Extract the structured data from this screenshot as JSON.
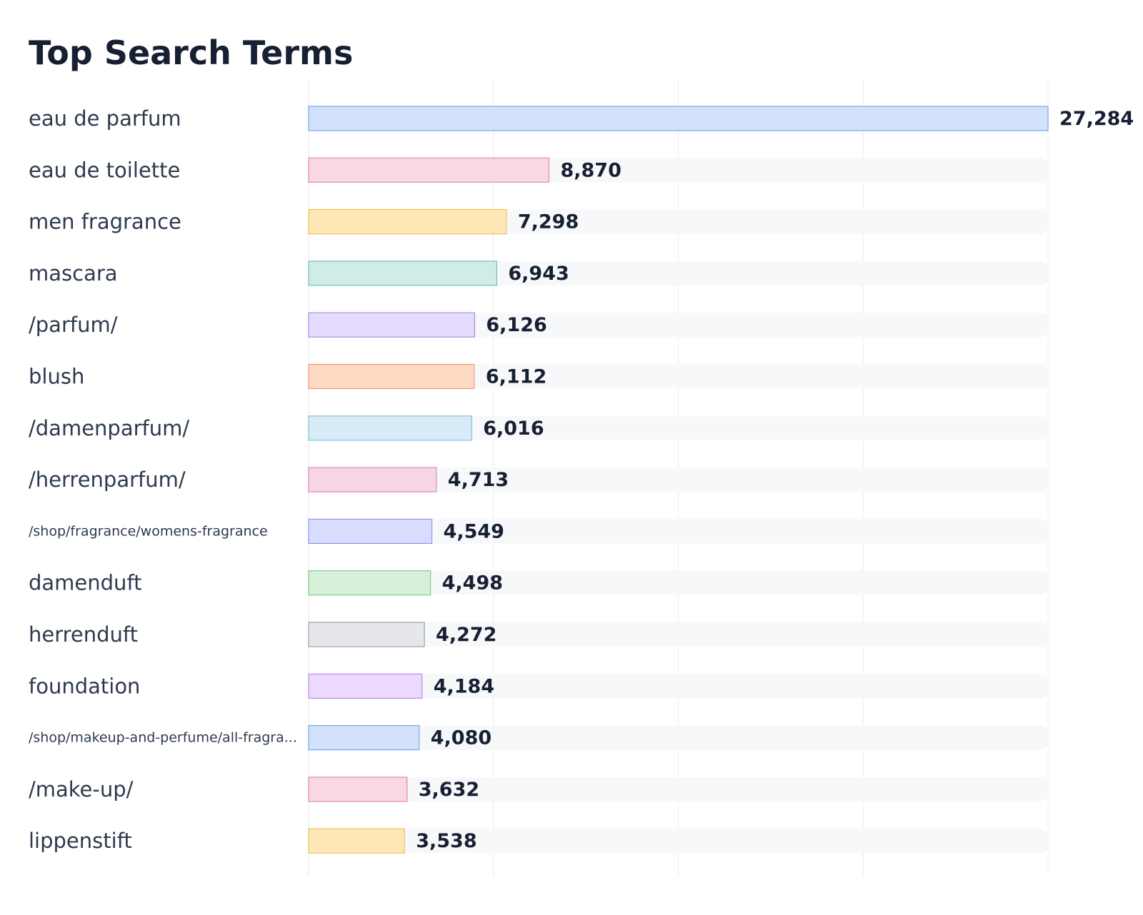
{
  "chart_data": {
    "type": "bar",
    "orientation": "horizontal",
    "title": "Top Search Terms",
    "xlabel": "",
    "ylabel": "",
    "xlim": [
      0,
      27284
    ],
    "grid": "vertical",
    "legend": "none",
    "categories": [
      "eau de parfum",
      "eau de toilette",
      "men fragrance",
      "mascara",
      "/parfum/",
      "blush",
      "/damenparfum/",
      "/herrenparfum/",
      "/shop/fragrance/womens-fragrance",
      "damenduft",
      "herrenduft",
      "foundation",
      "/shop/makeup-and-perfume/all-fragra...",
      "/make-up/",
      "lippenstift"
    ],
    "values": [
      27284,
      8870,
      7298,
      6943,
      6126,
      6112,
      6016,
      4713,
      4549,
      4498,
      4272,
      4184,
      4080,
      3632,
      3538
    ],
    "value_labels": [
      "27,284",
      "8,870",
      "7,298",
      "6,943",
      "6,126",
      "6,112",
      "6,016",
      "4,713",
      "4,549",
      "4,498",
      "4,272",
      "4,184",
      "4,080",
      "3,632",
      "3,538"
    ],
    "colors": {
      "fills": [
        "#d2e2fc",
        "#f8d8e3",
        "#fde7b5",
        "#cfede7",
        "#e5dcfd",
        "#fed9c3",
        "#d7ecf7",
        "#f6d5e6",
        "#dadcfe",
        "#d7f0da",
        "#e5e7eb",
        "#ecd9fe",
        "#d2e2fc",
        "#f8d8e3",
        "#fde7b5"
      ],
      "strokes": [
        "#7aa7e6",
        "#e58aa6",
        "#eac35a",
        "#6fc4b0",
        "#a98de8",
        "#f0a06e",
        "#82c2dd",
        "#d98ab3",
        "#8e95ee",
        "#7fcb8c",
        "#9aa1ac",
        "#c18be8",
        "#7aa7e6",
        "#e58aa6",
        "#eac35a"
      ],
      "track": "#f7f8fa",
      "grid": "#ececef"
    }
  }
}
